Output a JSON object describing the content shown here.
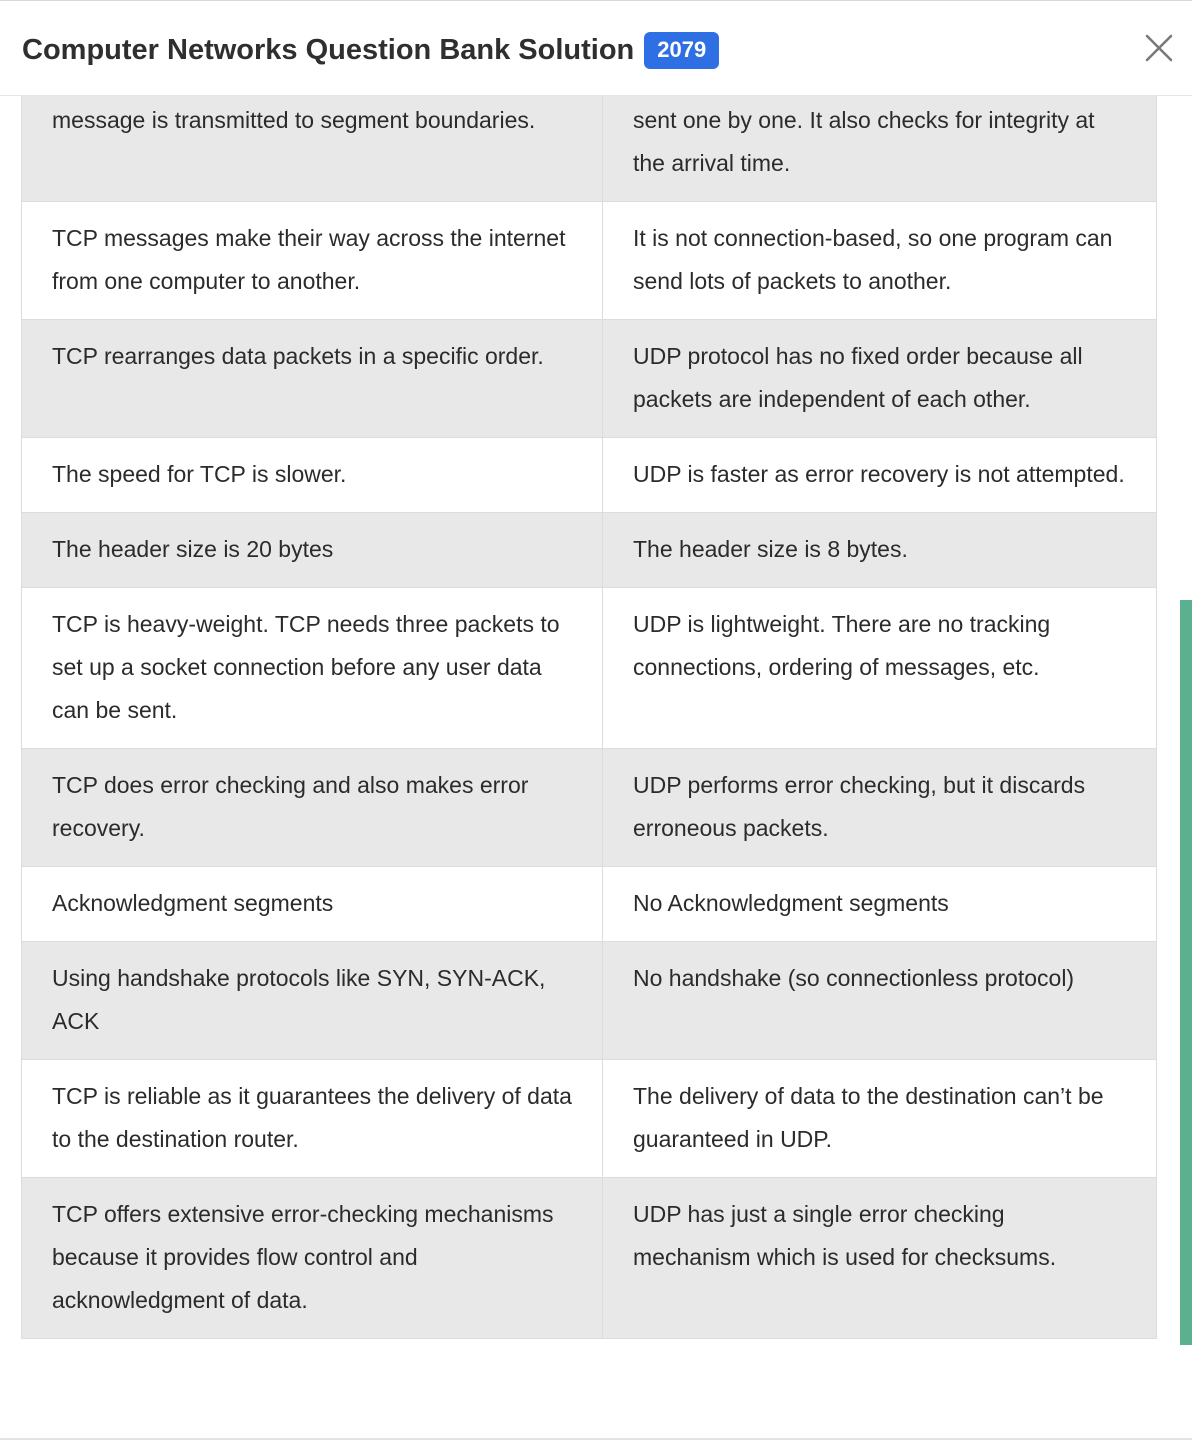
{
  "header": {
    "title": "Computer Networks Question Bank Solution",
    "year_badge": "2079",
    "close_icon": "close-icon"
  },
  "table": {
    "rows": [
      {
        "tcp": "message is transmitted to segment boundaries.",
        "udp": "sent one by one. It also checks for integrity at the arrival time."
      },
      {
        "tcp": "TCP messages make their way across the internet from one computer to another.",
        "udp": "It is not connection-based, so one program can send lots of packets to another."
      },
      {
        "tcp": "TCP rearranges data packets in a specific order.",
        "udp": "UDP protocol has no fixed order because all packets are independent of each other."
      },
      {
        "tcp": "The speed for TCP is slower.",
        "udp": "UDP is faster as error recovery is not attempted."
      },
      {
        "tcp": "The header size is 20 bytes",
        "udp": "The header size is 8 bytes."
      },
      {
        "tcp": "TCP is heavy-weight. TCP needs three packets to set up a socket connection before any user data can be sent.",
        "udp": "UDP is lightweight. There are no tracking connections, ordering of messages, etc."
      },
      {
        "tcp": "TCP does error checking and also makes error recovery.",
        "udp": "UDP performs error checking, but it discards erroneous packets."
      },
      {
        "tcp": "Acknowledgment segments",
        "udp": "No Acknowledgment segments"
      },
      {
        "tcp": "Using handshake protocols like SYN, SYN-ACK, ACK",
        "udp": "No handshake (so connectionless protocol)"
      },
      {
        "tcp": "TCP is reliable as it guarantees the delivery of data to the destination router.",
        "udp": "The delivery of data to the destination can’t be guaranteed in UDP."
      },
      {
        "tcp": "TCP offers extensive error-checking mechanisms because it provides flow control and acknowledgment of data.",
        "udp": "UDP has just a single error checking mechanism which is used for checksums."
      }
    ]
  },
  "colors": {
    "badge": "#2f6fe4",
    "shaded_row": "#e8e8e8",
    "scrollbar_thumb": "#5bb08f"
  }
}
